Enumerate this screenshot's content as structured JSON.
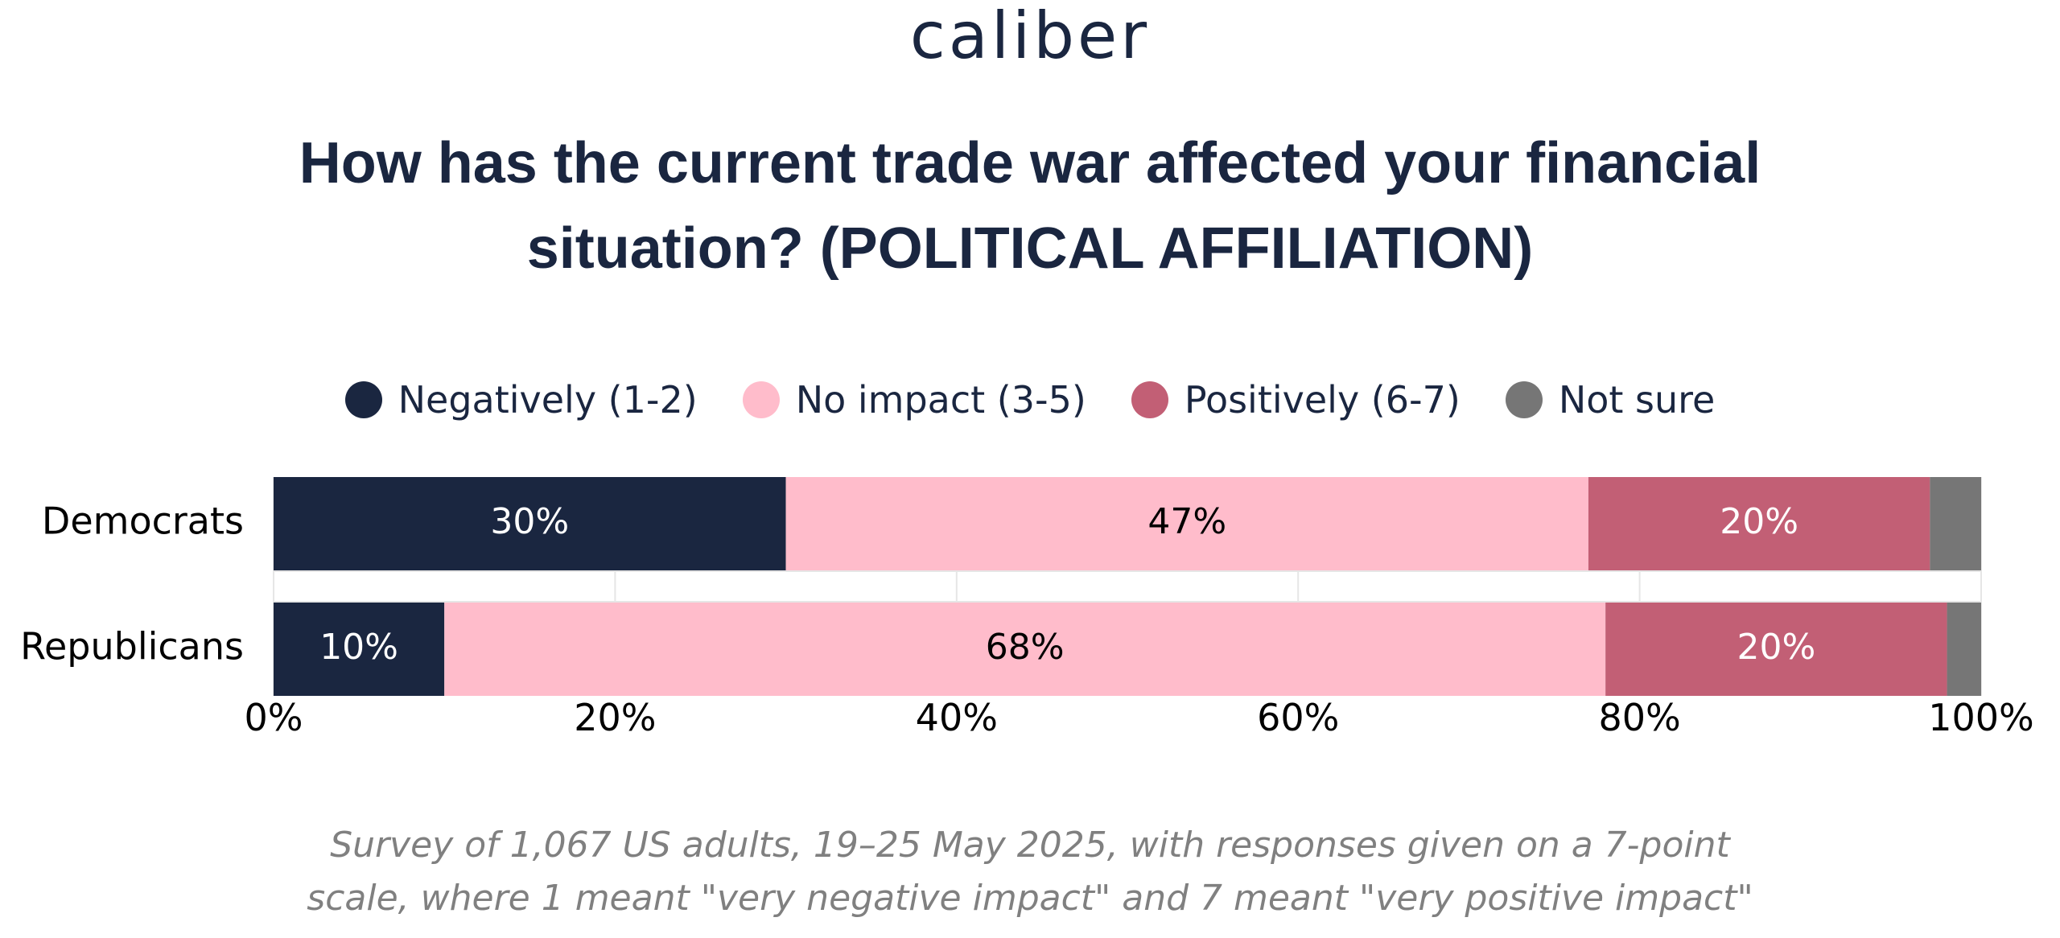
{
  "brand": {
    "logo_text": "caliber"
  },
  "title": {
    "line1": "How has the current trade war affected your financial",
    "line2": "situation? (POLITICAL AFFILIATION)"
  },
  "legend": [
    {
      "label": "Negatively (1-2)",
      "color": "#1a2640"
    },
    {
      "label": "No impact (3-5)",
      "color": "#ffbccb"
    },
    {
      "label": "Positively (6-7)",
      "color": "#c25f75"
    },
    {
      "label": "Not sure",
      "color": "#767676"
    }
  ],
  "chart_data": {
    "type": "bar",
    "orientation": "horizontal",
    "stacked": true,
    "categories": [
      "Democrats",
      "Republicans"
    ],
    "series": [
      {
        "name": "Negatively (1-2)",
        "values": [
          30,
          10
        ],
        "labels": [
          "30%",
          "10%"
        ],
        "color": "#1a2640",
        "label_color": "#ffffff"
      },
      {
        "name": "No impact (3-5)",
        "values": [
          47,
          68
        ],
        "labels": [
          "47%",
          "68%"
        ],
        "color": "#ffbccb",
        "label_color": "#000000"
      },
      {
        "name": "Positively (6-7)",
        "values": [
          20,
          20
        ],
        "labels": [
          "20%",
          "20%"
        ],
        "color": "#c25f75",
        "label_color": "#ffffff"
      },
      {
        "name": "Not sure",
        "values": [
          3,
          2
        ],
        "labels": [
          "",
          ""
        ],
        "color": "#767676",
        "label_color": "#ffffff"
      }
    ],
    "xlim": [
      0,
      100
    ],
    "x_ticks": [
      0,
      20,
      40,
      60,
      80,
      100
    ],
    "x_tick_labels": [
      "0%",
      "20%",
      "40%",
      "60%",
      "80%",
      "100%"
    ],
    "grid": true,
    "legend_position": "top"
  },
  "footnote": {
    "line1": "Survey of 1,067 US adults, 19–25 May 2025, with responses given on a 7-point",
    "line2": "scale, where 1 meant \"very negative impact\" and 7 meant \"very positive impact\""
  }
}
